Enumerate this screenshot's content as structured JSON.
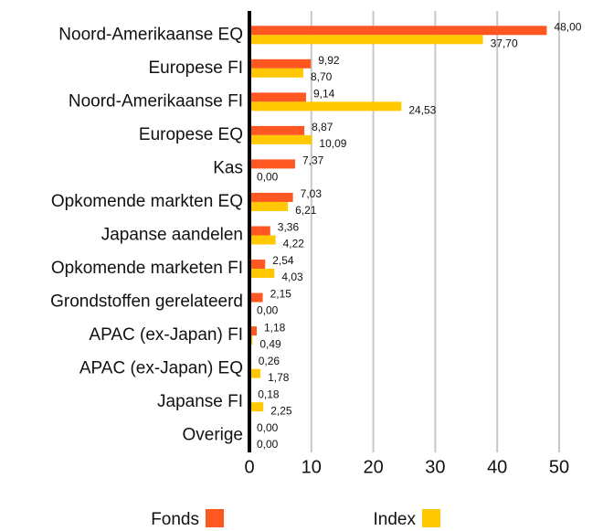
{
  "chart_data": {
    "type": "hbar",
    "categories": [
      "Noord-Amerikaanse EQ",
      "Europese FI",
      "Noord-Amerikaanse FI",
      "Europese EQ",
      "Kas",
      "Opkomende markten EQ",
      "Japanse aandelen",
      "Opkomende marketen FI",
      "Grondstoffen gerelateerd",
      "APAC (ex-Japan) FI",
      "APAC (ex-Japan) EQ",
      "Japanse FI",
      "Overige"
    ],
    "series": [
      {
        "name": "Fonds",
        "color": "#ff5722",
        "values": [
          48.0,
          9.92,
          9.14,
          8.87,
          7.37,
          7.03,
          3.36,
          2.54,
          2.15,
          1.18,
          0.26,
          0.18,
          0.0
        ],
        "value_labels": [
          "48,00",
          "9,92",
          "9,14",
          "8,87",
          "7,37",
          "7,03",
          "3,36",
          "2,54",
          "2,15",
          "1,18",
          "0,26",
          "0,18",
          "0,00"
        ]
      },
      {
        "name": "Index",
        "color": "#ffc800",
        "values": [
          37.7,
          8.7,
          24.53,
          10.09,
          0.0,
          6.21,
          4.22,
          4.03,
          0.0,
          0.49,
          1.78,
          2.25,
          0.0
        ],
        "value_labels": [
          "37,70",
          "8,70",
          "24,53",
          "10,09",
          "0,00",
          "6,21",
          "4,22",
          "4,03",
          "0,00",
          "0,49",
          "1,78",
          "2,25",
          "0,00"
        ]
      }
    ],
    "xlim": [
      0,
      50
    ],
    "xticks": [
      0,
      10,
      20,
      30,
      40,
      50
    ],
    "grid": true,
    "legend": "bottom"
  }
}
